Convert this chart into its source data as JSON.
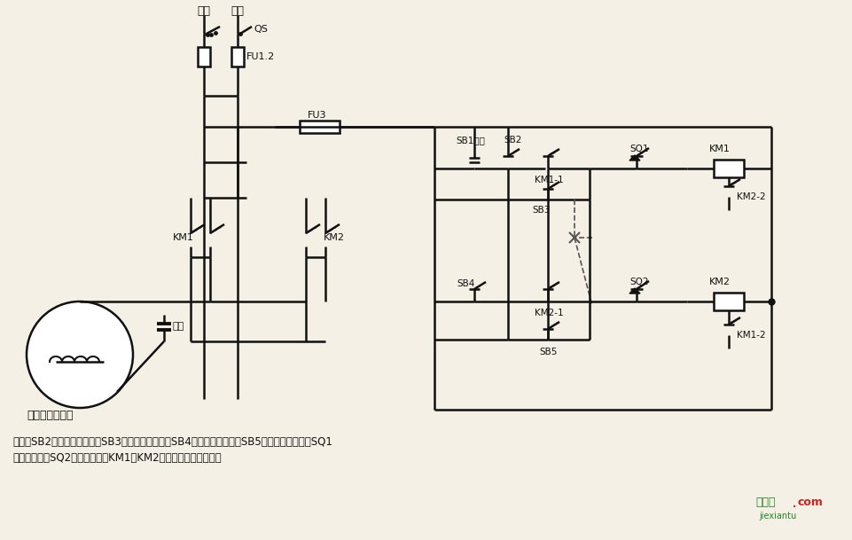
{
  "bg": "#f5f0e5",
  "lc": "#111111",
  "desc1": "说明：SB2为上升启动按钮，SB3为上升点动按钮，SB4为下降启动按钮，SB5为下降点动按钮；SQ1",
  "desc2": "为最高限位，SQ2为最低限位。KM1、KM2可用中间继电器代替。",
  "motor_label": "单相电容电动机",
  "cap_label": "电容",
  "label_huoxian": "火线",
  "label_lingxian": "零线",
  "label_QS": "QS",
  "label_FU12": "FU1.2",
  "label_FU3": "FU3",
  "label_KM1": "KM1",
  "label_KM2": "KM2",
  "label_SB1": "SB1停止",
  "label_SB2": "SB2",
  "label_SB3": "SB3",
  "label_SB4": "SB4",
  "label_SB5": "SB5",
  "label_SQ1": "SQ1",
  "label_SQ2": "SQ2",
  "label_KM11": "KM1-1",
  "label_KM21": "KM2-1",
  "label_KM12": "KM1-2",
  "label_KM22": "KM2-2",
  "wm1": "接线图",
  "wm_dot": ".",
  "wm2": "com",
  "wm3": "jiexiantu"
}
